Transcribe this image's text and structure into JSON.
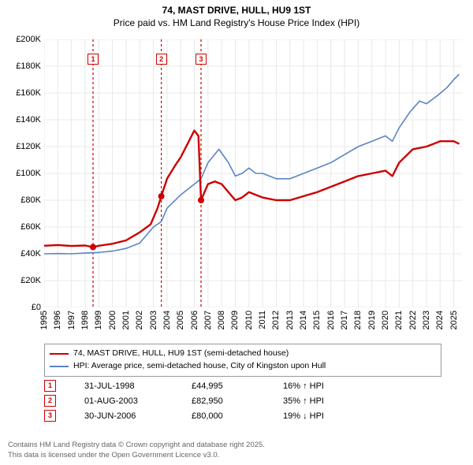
{
  "title_line1": "74, MAST DRIVE, HULL, HU9 1ST",
  "title_line2": "Price paid vs. HM Land Registry's House Price Index (HPI)",
  "chart": {
    "type": "line",
    "x_min_year": 1995,
    "x_max_year": 2025.6,
    "y_min": 0,
    "y_max": 200000,
    "y_ticks": [
      0,
      20000,
      40000,
      60000,
      80000,
      100000,
      120000,
      140000,
      160000,
      180000,
      200000
    ],
    "y_tick_labels": [
      "£0",
      "£20K",
      "£40K",
      "£60K",
      "£80K",
      "£100K",
      "£120K",
      "£140K",
      "£160K",
      "£180K",
      "£200K"
    ],
    "x_ticks": [
      1995,
      1996,
      1997,
      1998,
      1999,
      2000,
      2001,
      2002,
      2003,
      2004,
      2005,
      2006,
      2007,
      2008,
      2009,
      2010,
      2011,
      2012,
      2013,
      2014,
      2015,
      2016,
      2017,
      2018,
      2019,
      2020,
      2021,
      2022,
      2023,
      2024,
      2025
    ],
    "grid_color": "#e8e8e8",
    "bg_color": "#ffffff",
    "series": [
      {
        "name": "property",
        "label": "74, MAST DRIVE, HULL, HU9 1ST (semi-detached house)",
        "color": "#cc0000",
        "width": 2.4,
        "points": [
          [
            1995.0,
            46000
          ],
          [
            1996.0,
            46500
          ],
          [
            1997.0,
            45800
          ],
          [
            1998.0,
            46200
          ],
          [
            1998.58,
            44995
          ],
          [
            1999.0,
            46000
          ],
          [
            2000.0,
            47500
          ],
          [
            2001.0,
            50000
          ],
          [
            2002.0,
            56000
          ],
          [
            2002.8,
            62000
          ],
          [
            2003.3,
            74000
          ],
          [
            2003.58,
            82950
          ],
          [
            2004.0,
            96000
          ],
          [
            2004.6,
            106000
          ],
          [
            2005.0,
            112000
          ],
          [
            2005.5,
            122000
          ],
          [
            2006.0,
            132000
          ],
          [
            2006.3,
            128000
          ],
          [
            2006.49,
            80000
          ],
          [
            2007.0,
            92000
          ],
          [
            2007.5,
            94000
          ],
          [
            2008.0,
            92000
          ],
          [
            2008.5,
            86000
          ],
          [
            2009.0,
            80000
          ],
          [
            2009.5,
            82000
          ],
          [
            2010.0,
            86000
          ],
          [
            2010.5,
            84000
          ],
          [
            2011.0,
            82000
          ],
          [
            2012.0,
            80000
          ],
          [
            2013.0,
            80000
          ],
          [
            2014.0,
            83000
          ],
          [
            2015.0,
            86000
          ],
          [
            2016.0,
            90000
          ],
          [
            2017.0,
            94000
          ],
          [
            2018.0,
            98000
          ],
          [
            2019.0,
            100000
          ],
          [
            2020.0,
            102000
          ],
          [
            2020.5,
            98000
          ],
          [
            2021.0,
            108000
          ],
          [
            2022.0,
            118000
          ],
          [
            2023.0,
            120000
          ],
          [
            2024.0,
            124000
          ],
          [
            2025.0,
            124000
          ],
          [
            2025.4,
            122000
          ]
        ]
      },
      {
        "name": "hpi",
        "label": "HPI: Average price, semi-detached house, City of Kingston upon Hull",
        "color": "#5b84c4",
        "width": 1.6,
        "points": [
          [
            1995.0,
            40000
          ],
          [
            1996.0,
            40200
          ],
          [
            1997.0,
            40000
          ],
          [
            1998.0,
            40500
          ],
          [
            1999.0,
            41000
          ],
          [
            2000.0,
            42000
          ],
          [
            2001.0,
            44000
          ],
          [
            2002.0,
            48000
          ],
          [
            2003.0,
            60000
          ],
          [
            2003.58,
            64000
          ],
          [
            2004.0,
            74000
          ],
          [
            2005.0,
            84000
          ],
          [
            2006.0,
            92000
          ],
          [
            2006.49,
            96000
          ],
          [
            2007.0,
            108000
          ],
          [
            2007.8,
            118000
          ],
          [
            2008.5,
            108000
          ],
          [
            2009.0,
            98000
          ],
          [
            2009.5,
            100000
          ],
          [
            2010.0,
            104000
          ],
          [
            2010.5,
            100000
          ],
          [
            2011.0,
            100000
          ],
          [
            2012.0,
            96000
          ],
          [
            2013.0,
            96000
          ],
          [
            2014.0,
            100000
          ],
          [
            2015.0,
            104000
          ],
          [
            2016.0,
            108000
          ],
          [
            2017.0,
            114000
          ],
          [
            2018.0,
            120000
          ],
          [
            2019.0,
            124000
          ],
          [
            2020.0,
            128000
          ],
          [
            2020.5,
            124000
          ],
          [
            2021.0,
            134000
          ],
          [
            2021.8,
            146000
          ],
          [
            2022.5,
            154000
          ],
          [
            2023.0,
            152000
          ],
          [
            2023.8,
            158000
          ],
          [
            2024.5,
            164000
          ],
          [
            2025.0,
            170000
          ],
          [
            2025.4,
            174000
          ]
        ]
      }
    ],
    "markers": [
      {
        "n": "1",
        "year": 1998.58,
        "price": 44995
      },
      {
        "n": "2",
        "year": 2003.58,
        "price": 82950
      },
      {
        "n": "3",
        "year": 2006.49,
        "price": 80000
      }
    ]
  },
  "legend": {
    "row1": "74, MAST DRIVE, HULL, HU9 1ST (semi-detached house)",
    "row2": "HPI: Average price, semi-detached house, City of Kingston upon Hull"
  },
  "events": [
    {
      "n": "1",
      "date": "31-JUL-1998",
      "price": "£44,995",
      "pct": "16% ↑ HPI"
    },
    {
      "n": "2",
      "date": "01-AUG-2003",
      "price": "£82,950",
      "pct": "35% ↑ HPI"
    },
    {
      "n": "3",
      "date": "30-JUN-2006",
      "price": "£80,000",
      "pct": "19% ↓ HPI"
    }
  ],
  "credits_l1": "Contains HM Land Registry data © Crown copyright and database right 2025.",
  "credits_l2": "This data is licensed under the Open Government Licence v3.0."
}
